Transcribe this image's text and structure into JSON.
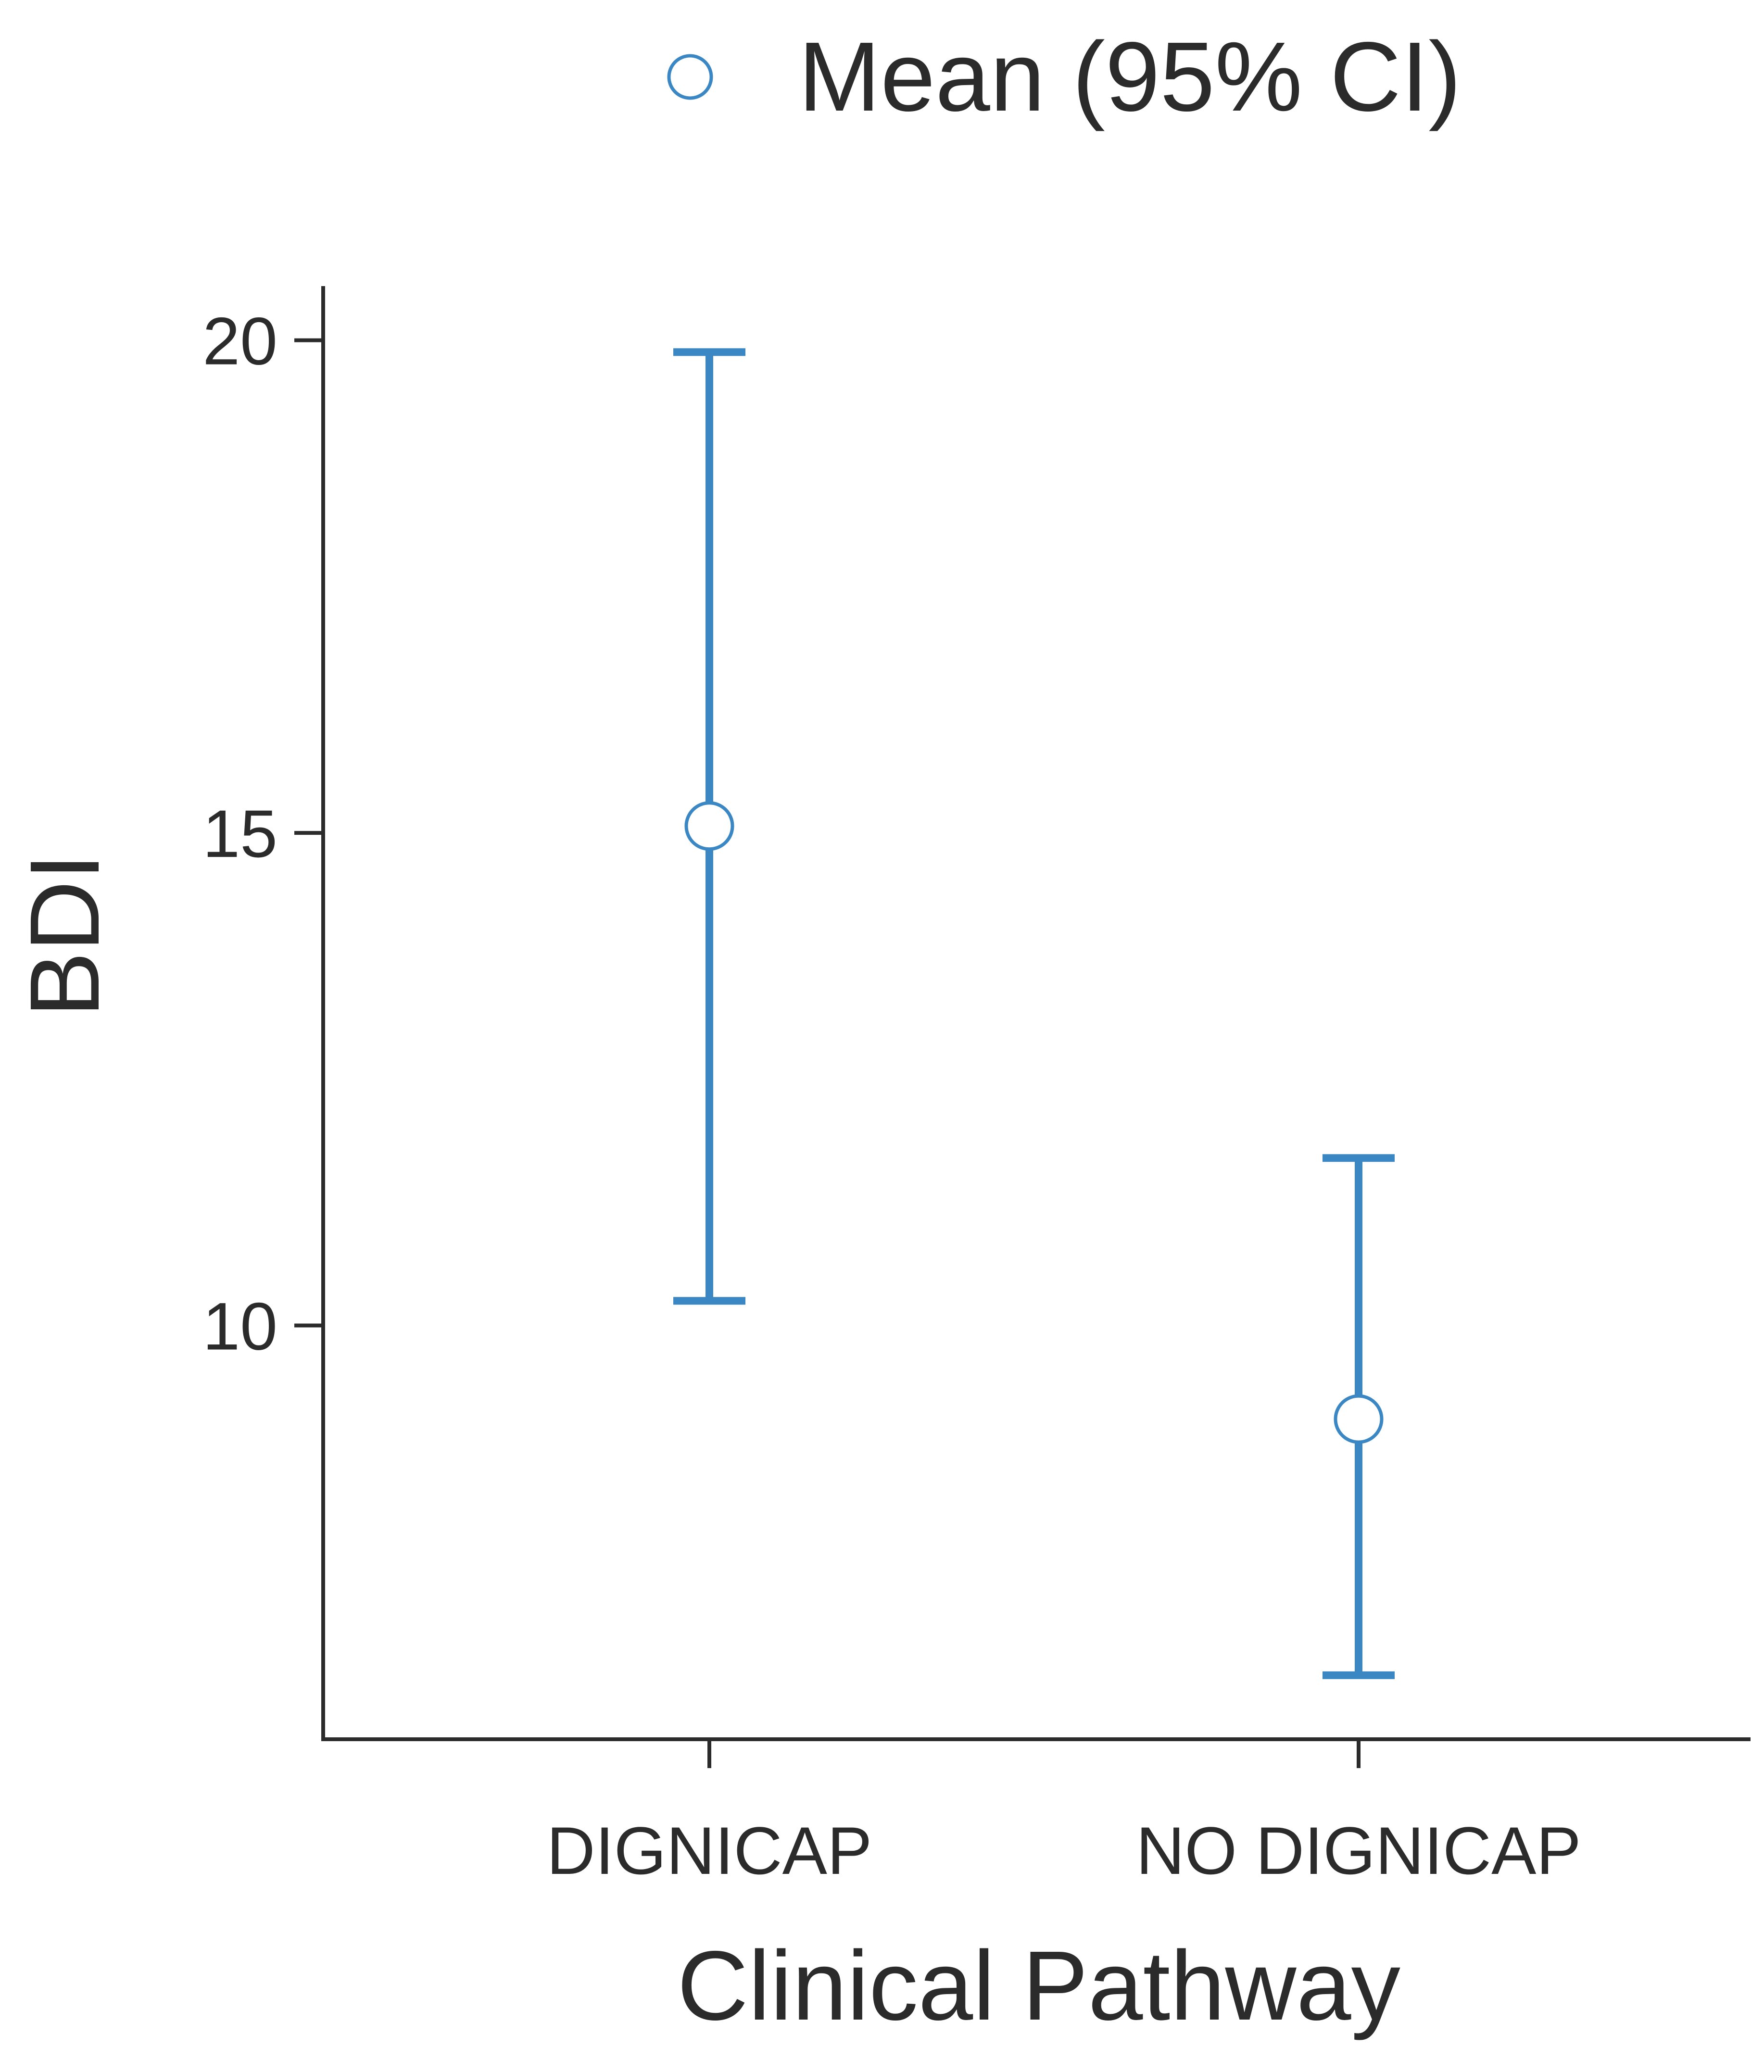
{
  "chart_data": {
    "type": "scatter",
    "title": "",
    "xlabel": "Clinical Pathway",
    "ylabel": "BDI",
    "categories": [
      "DIGNICAP",
      "NO DIGNICAP"
    ],
    "series": [
      {
        "name": "Mean (95% CI)",
        "values": [
          15.07,
          9.05
        ],
        "ci_lower": [
          10.25,
          6.45
        ],
        "ci_upper": [
          19.88,
          11.7
        ]
      }
    ],
    "yticks": [
      10,
      15,
      20
    ],
    "ylim": [
      5.8,
      20.55
    ],
    "grid": false,
    "legend_position": "top",
    "colors": {
      "series": "#3b87c4",
      "axis": "#2b2b2b"
    }
  }
}
